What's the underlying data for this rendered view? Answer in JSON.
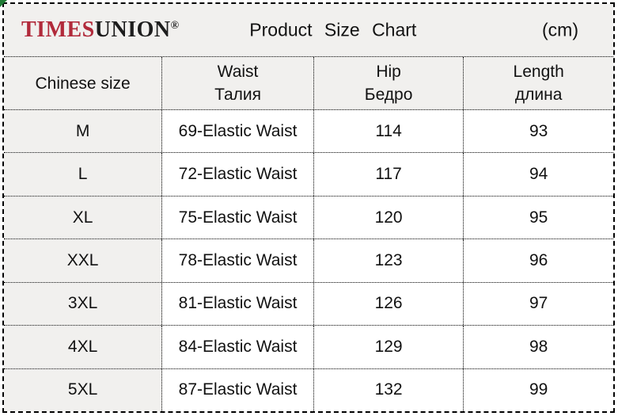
{
  "brand": {
    "times": "TIMES",
    "union": "UNION",
    "registered": "®"
  },
  "colors": {
    "brand_red": "#b12a3b",
    "brand_dark": "#1d1d1d",
    "shade_fill": "#f1f0ee",
    "border": "#000000",
    "corner_triangle_green": "#1e7b34"
  },
  "chart_data": {
    "type": "table",
    "title": "Product Size Chart",
    "unit": "(cm)",
    "columns": [
      {
        "en": "Chinese size",
        "ru": ""
      },
      {
        "en": "Waist",
        "ru": "Талия"
      },
      {
        "en": "Hip",
        "ru": "Бедро"
      },
      {
        "en": "Length",
        "ru": "длина"
      }
    ],
    "rows": [
      {
        "size": "M",
        "waist": "69-Elastic Waist",
        "hip": "114",
        "length": "93"
      },
      {
        "size": "L",
        "waist": "72-Elastic Waist",
        "hip": "117",
        "length": "94"
      },
      {
        "size": "XL",
        "waist": "75-Elastic Waist",
        "hip": "120",
        "length": "95"
      },
      {
        "size": "XXL",
        "waist": "78-Elastic Waist",
        "hip": "123",
        "length": "96"
      },
      {
        "size": "3XL",
        "waist": "81-Elastic Waist",
        "hip": "126",
        "length": "97"
      },
      {
        "size": "4XL",
        "waist": "84-Elastic Waist",
        "hip": "129",
        "length": "98"
      },
      {
        "size": "5XL",
        "waist": "87-Elastic Waist",
        "hip": "132",
        "length": "99"
      }
    ]
  }
}
